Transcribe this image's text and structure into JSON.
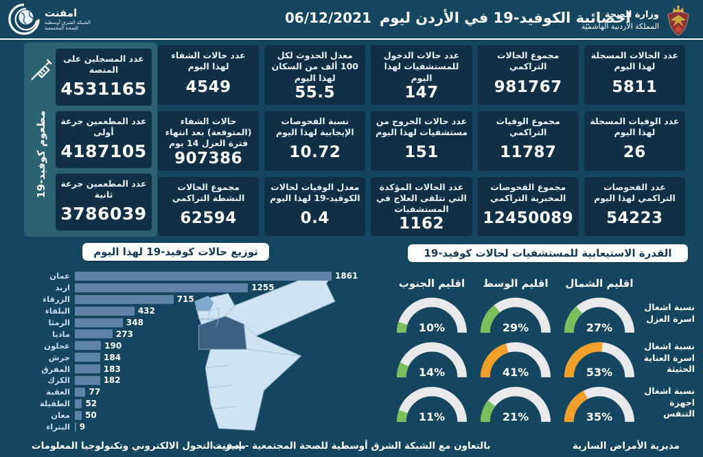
{
  "header": {
    "title": "احصائية الكوفيد-19 في الأردن ليوم",
    "date": "06/12/2021",
    "ministry": {
      "title": "وزارة الصحة",
      "subtitle": "المملكة الأردنية الهاشمية"
    },
    "logo": {
      "name": "امفنت",
      "line1": "الشبكة الشرق أوسطية",
      "line2": "للصحة المجتمعية"
    }
  },
  "vaccine_panel": {
    "vertical_label": "مطعوم كوفيد-19",
    "cards": [
      {
        "label": "عدد المسجلين على المنصة",
        "value": "4531165"
      },
      {
        "label": "عدد المطعمين جرعة أولى",
        "value": "4187105"
      },
      {
        "label": "عدد المطعمين جرعة ثانية",
        "value": "3786039"
      }
    ]
  },
  "stats": {
    "cards": [
      {
        "label": "عدد الحالات المسجلة لهذا اليوم",
        "value": "5811"
      },
      {
        "label": "مجموع الحالات التراكمي",
        "value": "981767"
      },
      {
        "label": "عدد حالات الدخول للمستشفيات لهذا اليوم",
        "value": "147"
      },
      {
        "label": "معدل الحدوث لكل 100 ألف من السكان لهذا اليوم",
        "value": "55.5"
      },
      {
        "label": "عدد حالات الشفاء لهذا اليوم",
        "value": "4549"
      },
      {
        "label": "عدد الوفيات المسجلة لهذا اليوم",
        "value": "26"
      },
      {
        "label": "مجموع الوفيات التراكمي",
        "value": "11787"
      },
      {
        "label": "عدد حالات الخروج من مستشفيات لهذا اليوم",
        "value": "151"
      },
      {
        "label": "نسبة الفحوصات الإيجابية لهذا اليوم",
        "value": "10.72"
      },
      {
        "label": "حالات الشفاء (المتوقعة) بعد انتهاء فترة العزل 14 يوم",
        "value": "907386"
      },
      {
        "label": "عدد الفحوصات التراكمي لهذا اليوم",
        "value": "54223"
      },
      {
        "label": "مجموع الفحوصات المخبرية التراكمي",
        "value": "12450089"
      },
      {
        "label": "عدد الحالات المؤكدة التي تتلقى العلاج في المستشفيات",
        "value": "1162"
      },
      {
        "label": "معدل الوفيات لحالات الكوفيد-19 لهذا اليوم",
        "value": "0.4"
      },
      {
        "label": "مجموع الحالات النشطة التراكمي",
        "value": "62594"
      }
    ]
  },
  "distribution": {
    "title": "توزيع حالات كوفيد-19 لهذا اليوم",
    "categories": [
      "عمان",
      "اربد",
      "الزرقاء",
      "البلقاء",
      "الرمثا",
      "ماديا",
      "عجلون",
      "جرش",
      "المفرق",
      "الكرك",
      "العقبة",
      "الطفيلة",
      "معان",
      "البتراء"
    ],
    "values": [
      1861,
      1255,
      715,
      432,
      348,
      273,
      190,
      184,
      183,
      182,
      77,
      52,
      50,
      9
    ]
  },
  "hospital_capacity": {
    "title": "القدرة الاستيعابية للمستشفيات لحالات كوفيد-19",
    "regions": [
      "اقليم الجنوب",
      "اقليم الوسط",
      "اقليم الشمال"
    ],
    "rows": [
      {
        "label": "نسبة اشغال اسرة العزل",
        "cells": [
          {
            "label": "10%",
            "value": 10,
            "color": "green"
          },
          {
            "label": "29%",
            "value": 29,
            "color": "green"
          },
          {
            "label": "27%",
            "value": 27,
            "color": "green"
          }
        ]
      },
      {
        "label": "نسبة اشغال اسرة العناية الحثيثة",
        "cells": [
          {
            "label": "14%",
            "value": 14,
            "color": "green"
          },
          {
            "label": "41%",
            "value": 41,
            "color": "orange"
          },
          {
            "label": "53%",
            "value": 53,
            "color": "orange"
          }
        ]
      },
      {
        "label": "نسبة اشغال اجهزة التنفس",
        "cells": [
          {
            "label": "11%",
            "value": 11,
            "color": "green"
          },
          {
            "label": "21%",
            "value": 21,
            "color": "green"
          },
          {
            "label": "35%",
            "value": 35,
            "color": "orange"
          }
        ]
      }
    ]
  },
  "footer": {
    "right": "مديرية الأمراض السارية",
    "center": "بالتعاون مع الشبكة الشرق أوسطية للصحة المجتمعية - إمفنت",
    "left": "مديرية التحول الالكتروني وتكنولوجيا المعلومات"
  },
  "colors": {
    "background": "#15465f",
    "card": "#112f45",
    "vaccine_panel": "#2b6372",
    "bar": "#5d83a8",
    "green": "#77c05c",
    "orange": "#f0a02a",
    "gauge_track": "#e9e9ec",
    "map_light": "#cfe3f2",
    "map_medium": "#7fa9cc",
    "map_dark": "#3c6182"
  },
  "chart_data": [
    {
      "type": "bar",
      "title": "توزيع حالات كوفيد-19 لهذا اليوم",
      "orientation": "horizontal",
      "categories": [
        "عمان",
        "اربد",
        "الزرقاء",
        "البلقاء",
        "الرمثا",
        "ماديا",
        "عجلون",
        "جرش",
        "المفرق",
        "الكرك",
        "العقبة",
        "الطفيلة",
        "معان",
        "البتراء"
      ],
      "values": [
        1861,
        1255,
        715,
        432,
        348,
        273,
        190,
        184,
        183,
        182,
        77,
        52,
        50,
        9
      ],
      "xlabel": "",
      "ylabel": "",
      "xlim": [
        0,
        1861
      ],
      "value_labels": true,
      "grid": false,
      "legend": "none"
    },
    {
      "type": "table",
      "title": "القدرة الاستيعابية للمستشفيات لحالات كوفيد-19",
      "subtype": "gauge-grid-percent",
      "columns": [
        "اقليم الجنوب",
        "اقليم الوسط",
        "اقليم الشمال"
      ],
      "rows": [
        "نسبة اشغال اسرة العزل",
        "نسبة اشغال اسرة العناية الحثيثة",
        "نسبة اشغال اجهزة التنفس"
      ],
      "values_percent": [
        [
          10,
          29,
          27
        ],
        [
          14,
          41,
          53
        ],
        [
          11,
          21,
          35
        ]
      ]
    }
  ]
}
